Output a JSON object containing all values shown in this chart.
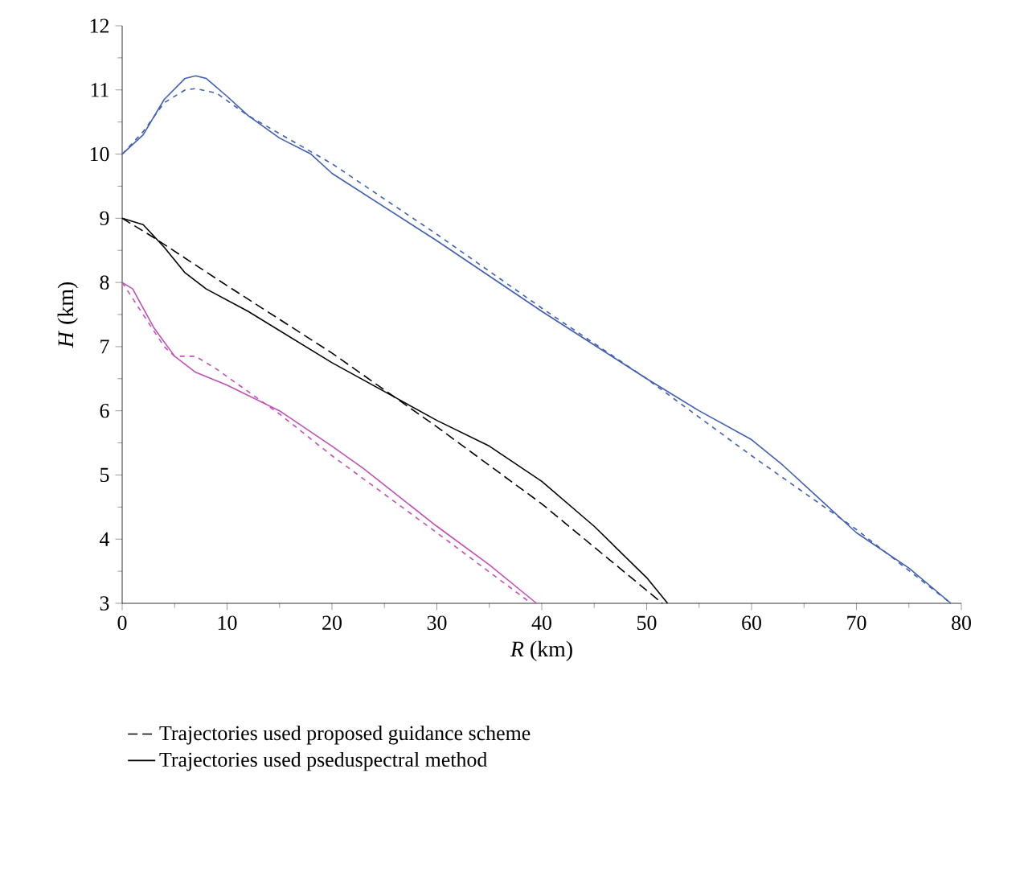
{
  "chart_data": {
    "type": "line",
    "xlabel": "*R* (km)",
    "ylabel": "*H* (km)",
    "xlim": [
      0,
      80
    ],
    "ylim": [
      3,
      12
    ],
    "xticks": [
      0,
      10,
      20,
      30,
      40,
      50,
      60,
      70,
      80
    ],
    "yticks": [
      3,
      4,
      5,
      6,
      7,
      8,
      9,
      10,
      11,
      12
    ],
    "grid": false,
    "legend": "bottom",
    "marker": "none",
    "series": [
      {
        "name": "Trajectories used proposed guidance scheme",
        "color": "#000000",
        "line_style": "dashed",
        "x": [
          0,
          3,
          10,
          20,
          30,
          40,
          51.5
        ],
        "values": [
          9,
          8.7,
          7.95,
          6.9,
          5.75,
          4.55,
          3.0
        ]
      },
      {
        "name": "Trajectories used pseduspectral method",
        "color": "#000000",
        "line_style": "solid",
        "x": [
          0,
          2,
          4,
          6,
          8,
          12,
          20,
          30,
          35,
          40,
          45,
          50,
          52
        ],
        "values": [
          9,
          8.9,
          8.55,
          8.15,
          7.9,
          7.55,
          6.75,
          5.85,
          5.45,
          4.9,
          4.2,
          3.4,
          3.0
        ]
      },
      {
        "color": "#3f5fb5",
        "line_style": "dashed",
        "x": [
          0,
          2,
          4,
          6,
          7,
          9,
          12,
          20,
          30,
          40,
          50,
          60,
          70,
          79
        ],
        "values": [
          10,
          10.35,
          10.8,
          11.0,
          11.02,
          10.95,
          10.6,
          9.85,
          8.75,
          7.6,
          6.5,
          5.3,
          4.15,
          3.0
        ]
      },
      {
        "color": "#3f5fb5",
        "line_style": "solid",
        "x": [
          0,
          2,
          4,
          6,
          7,
          8,
          10,
          12,
          15,
          18,
          20,
          30,
          40,
          50,
          55,
          60,
          63,
          66,
          70,
          75,
          79
        ],
        "values": [
          10,
          10.3,
          10.85,
          11.18,
          11.22,
          11.18,
          10.9,
          10.6,
          10.25,
          10.0,
          9.7,
          8.65,
          7.55,
          6.5,
          6.0,
          5.55,
          5.15,
          4.7,
          4.1,
          3.55,
          3.0
        ]
      },
      {
        "color": "#c050b8",
        "line_style": "dashed",
        "x": [
          0,
          2,
          4,
          5,
          7,
          9,
          15,
          20,
          30,
          39
        ],
        "values": [
          8,
          7.5,
          7.0,
          6.85,
          6.85,
          6.65,
          5.95,
          5.3,
          4.1,
          3.0
        ]
      },
      {
        "color": "#c050b8",
        "line_style": "solid",
        "x": [
          0,
          1,
          3,
          5,
          7,
          10,
          15,
          20,
          23,
          30,
          35,
          39.5
        ],
        "values": [
          8,
          7.9,
          7.3,
          6.85,
          6.6,
          6.4,
          6.0,
          5.45,
          5.1,
          4.2,
          3.6,
          3.0
        ]
      }
    ]
  }
}
